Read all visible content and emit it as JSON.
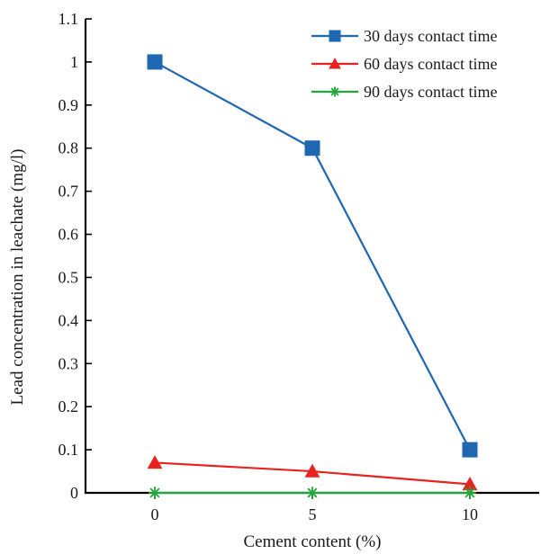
{
  "chart_data": {
    "type": "line",
    "title": "",
    "xlabel": "Cement content (%)",
    "ylabel": "Lead concentration in leachate (mg/l)",
    "x": [
      0,
      5,
      10
    ],
    "x_tick_labels": [
      "0",
      "5",
      "10"
    ],
    "xlim": [
      -2.2,
      12.2
    ],
    "ylim": [
      0,
      1.1
    ],
    "y_ticks": [
      0,
      0.1,
      0.2,
      0.3,
      0.4,
      0.5,
      0.6,
      0.7,
      0.8,
      0.9,
      1,
      1.1
    ],
    "grid": false,
    "legend_position": "top-right",
    "series": [
      {
        "name": "30 days contact time",
        "values": [
          1.0,
          0.8,
          0.1
        ],
        "color": "#1f67b1",
        "marker": "square"
      },
      {
        "name": "60 days contact time",
        "values": [
          0.07,
          0.05,
          0.02
        ],
        "color": "#e8231f",
        "marker": "triangle"
      },
      {
        "name": "90 days contact time",
        "values": [
          0.0,
          0.0,
          0.0
        ],
        "color": "#22a83a",
        "marker": "asterisk"
      }
    ]
  }
}
